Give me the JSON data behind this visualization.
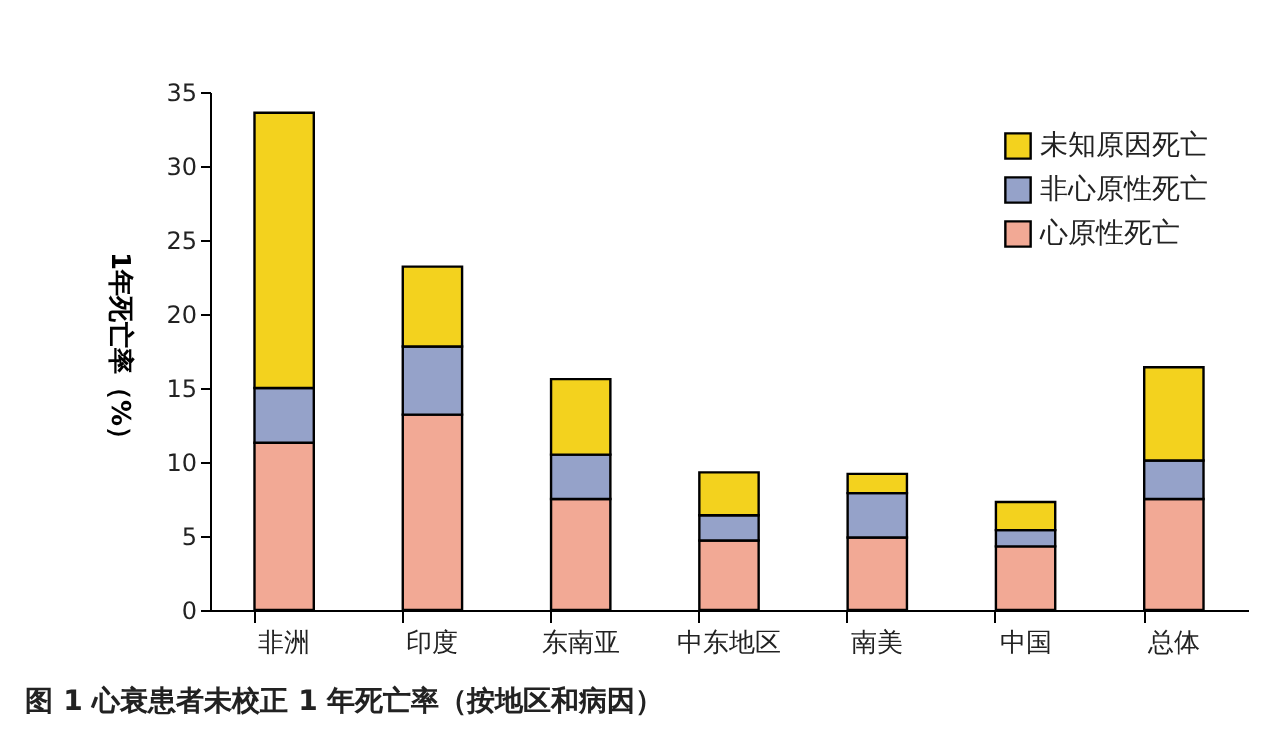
{
  "chart_data": {
    "type": "bar",
    "stacked": true,
    "ylabel": "1年死亡率（%）",
    "categories": [
      "非洲",
      "印度",
      "东南亚",
      "中东地区",
      "南美",
      "中国",
      "总体"
    ],
    "series": [
      {
        "name": "心原性死亡",
        "color": "#f2a995",
        "values": [
          11.3,
          13.2,
          7.5,
          4.7,
          4.9,
          4.3,
          7.5
        ]
      },
      {
        "name": "非心原性死亡",
        "color": "#95a2c9",
        "values": [
          3.7,
          4.6,
          3.0,
          1.7,
          3.0,
          1.1,
          2.6
        ]
      },
      {
        "name": "未知原因死亡",
        "color": "#f3d21e",
        "values": [
          18.6,
          5.4,
          5.1,
          2.9,
          1.3,
          1.9,
          6.3
        ]
      }
    ],
    "ylim": [
      0,
      35
    ],
    "yticks": [
      0,
      5,
      10,
      15,
      20,
      25,
      30,
      35
    ],
    "grid": false,
    "legend": "top right",
    "annotations": [
      "图 1  心衰患者未校正 1 年死亡率（按地区和病因）"
    ]
  }
}
